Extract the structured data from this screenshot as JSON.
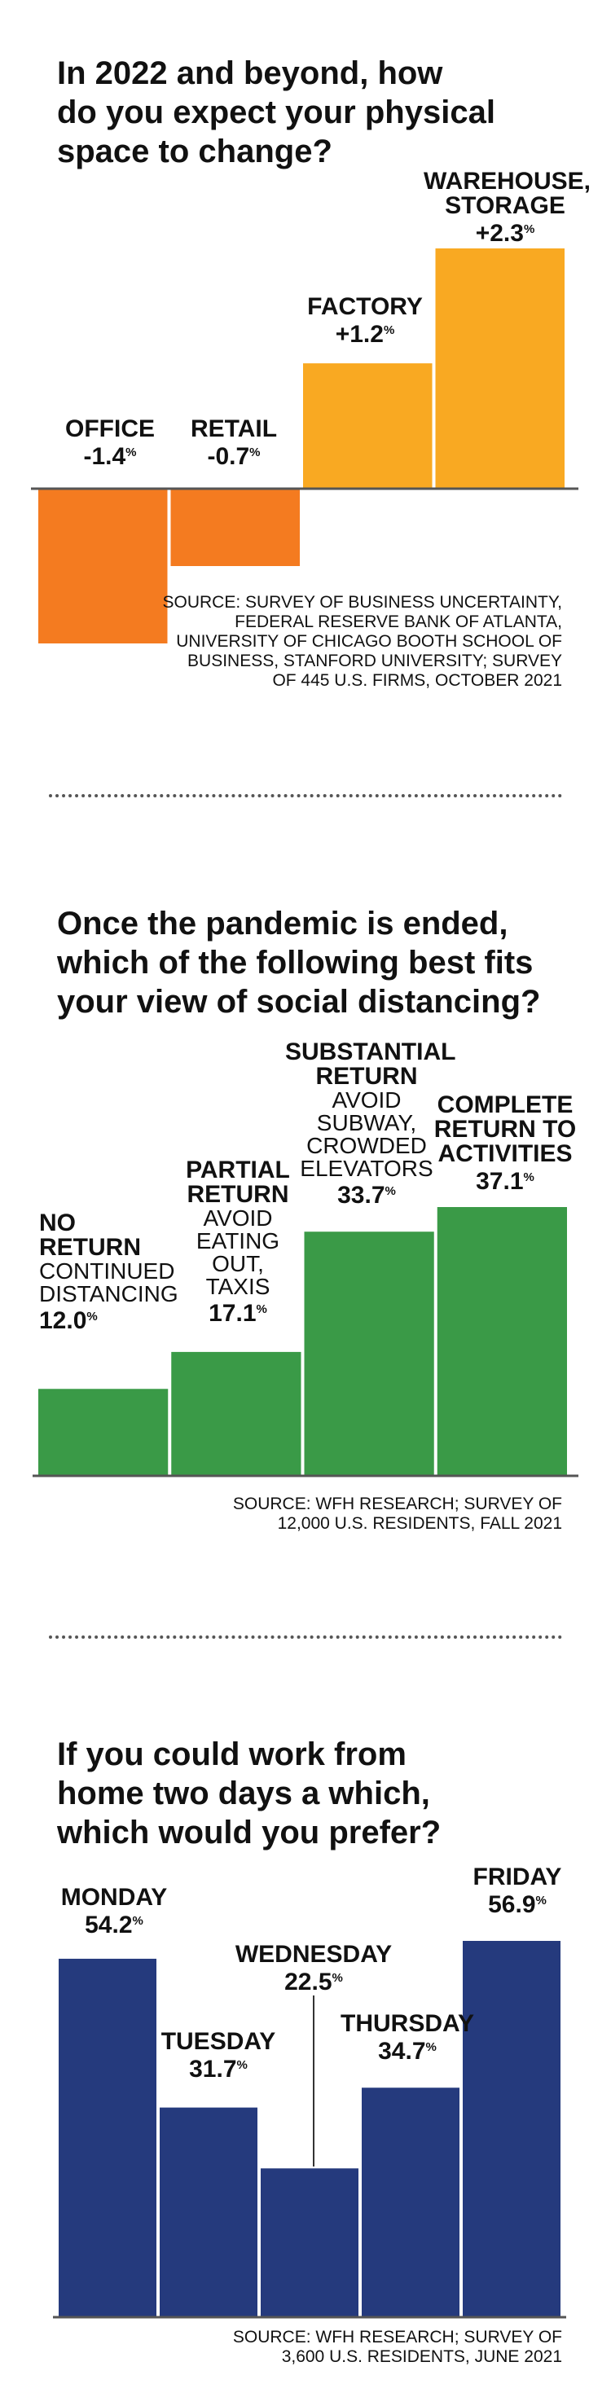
{
  "charts": [
    {
      "title": "In 2022 and beyond, how\ndo you expect your physical\nspace to change?",
      "source": "SOURCE: SURVEY OF BUSINESS UNCERTAINTY,\nFEDERAL RESERVE BANK OF ATLANTA,\nUNIVERSITY OF CHICAGO BOOTH SCHOOL OF\nBUSINESS, STANFORD UNIVERSITY; SURVEY\nOF 445 U.S. FIRMS, OCTOBER 2021",
      "value_labels": [
        "-1.4",
        "-0.7",
        "+1.2",
        "+2.3"
      ],
      "category_labels": [
        [
          "OFFICE"
        ],
        [
          "RETAIL"
        ],
        [
          "FACTORY"
        ],
        [
          "WAREHOUSE,",
          "STORAGE"
        ]
      ],
      "unit": "%"
    },
    {
      "title": "Once the pandemic is ended,\nwhich of the following best fits\nyour view of social distancing?",
      "source": "SOURCE: WFH RESEARCH; SURVEY OF\n12,000 U.S. RESIDENTS, FALL 2021",
      "value_labels": [
        "12.0",
        "17.1",
        "33.7",
        "37.1"
      ],
      "category_labels": [
        [
          "NO",
          "RETURN"
        ],
        [
          "PARTIAL",
          "RETURN"
        ],
        [
          "SUBSTANTIAL",
          "RETURN"
        ],
        [
          "COMPLETE",
          "RETURN TO",
          "ACTIVITIES"
        ]
      ],
      "sub_labels": [
        [
          "CONTINUED",
          "DISTANCING"
        ],
        [
          "AVOID",
          "EATING",
          "OUT,",
          "TAXIS"
        ],
        [
          "AVOID",
          "SUBWAY,",
          "CROWDED",
          "ELEVATORS"
        ],
        []
      ],
      "unit": "%"
    },
    {
      "title": "If you could work from\nhome two days a which,\nwhich would you prefer?",
      "source": "SOURCE: WFH RESEARCH; SURVEY OF\n3,600 U.S. RESIDENTS, JUNE 2021",
      "value_labels": [
        "54.2",
        "31.7",
        "22.5",
        "34.7",
        "56.9"
      ],
      "category_labels": [
        [
          "MONDAY"
        ],
        [
          "TUESDAY"
        ],
        [
          "WEDNESDAY"
        ],
        [
          "THURSDAY"
        ],
        [
          "FRIDAY"
        ]
      ],
      "unit": "%"
    }
  ],
  "chart_data": [
    {
      "type": "bar",
      "title": "In 2022 and beyond, how do you expect your physical space to change?",
      "categories": [
        "OFFICE",
        "RETAIL",
        "FACTORY",
        "WAREHOUSE, STORAGE"
      ],
      "values": [
        -1.4,
        -0.7,
        1.2,
        2.3
      ],
      "ylim": [
        -1.4,
        2.3
      ],
      "grid": false,
      "colors": [
        "#f47b20",
        "#f47b20",
        "#f9a922",
        "#f9a922"
      ]
    },
    {
      "type": "bar",
      "title": "Once the pandemic is ended, which of the following best fits your view of social distancing?",
      "categories": [
        "NO RETURN",
        "PARTIAL RETURN",
        "SUBSTANTIAL RETURN",
        "COMPLETE RETURN TO ACTIVITIES"
      ],
      "values": [
        12.0,
        17.1,
        33.7,
        37.1
      ],
      "ylim": [
        0,
        37.1
      ],
      "grid": false,
      "colors": [
        "#3a9a47",
        "#3a9a47",
        "#3a9a47",
        "#3a9a47"
      ]
    },
    {
      "type": "bar",
      "title": "If you could work from home two days a which, which would you prefer?",
      "categories": [
        "MONDAY",
        "TUESDAY",
        "WEDNESDAY",
        "THURSDAY",
        "FRIDAY"
      ],
      "values": [
        54.2,
        31.7,
        22.5,
        34.7,
        56.9
      ],
      "ylim": [
        0,
        56.9
      ],
      "grid": false,
      "colors": [
        "#253a7d",
        "#253a7d",
        "#253a7d",
        "#253a7d",
        "#253a7d"
      ]
    }
  ]
}
